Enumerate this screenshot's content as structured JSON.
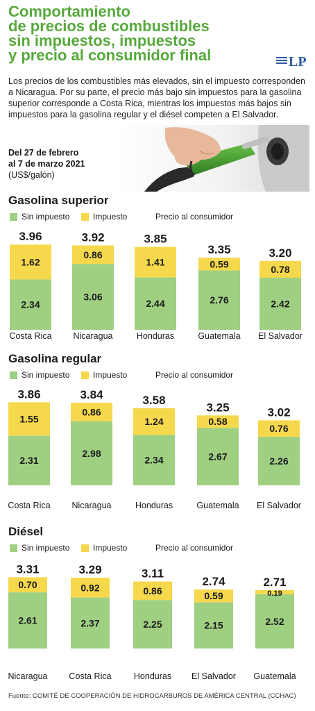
{
  "header": {
    "title_lines": [
      "Comportamiento",
      "de precios de combustibles",
      "sin impuestos, impuestos",
      "y precio al consumidor final"
    ],
    "logo_text": "LP"
  },
  "intro_text": "Los precios de los combustibles  más elevados, sin el impuesto corresponden a Nicaragua. Por su parte, el precio más bajo sin  impuestos para la gasolina superior corresponde a Costa Rica, mientras los impuestos más bajos sin impuestos para la gasolina regular y el diésel competen a El Salvador.",
  "period": {
    "line1": "Del 27 de febrero",
    "line2": "al 7 de marzo 2021",
    "unit": "(US$/galón)"
  },
  "footer": "Fuente: COMITÉ DE COOPERACIÓN DE HIDROCARBUROS DE AMÉRICA CENTRAL (CCHAC)",
  "colors": {
    "title": "#56a93c",
    "sin_impuesto": "#9fd082",
    "impuesto": "#f6d84c",
    "logo": "#2f5ca8"
  },
  "legend": {
    "sin_impuesto": "Sin impuesto",
    "impuesto": "Impuesto",
    "total": "Precio al consumidor"
  },
  "chart_data": [
    {
      "type": "bar",
      "stacked": true,
      "title": "Gasolina superior",
      "categories": [
        "Costa Rica",
        "Nicaragua",
        "Honduras",
        "Guatemala",
        "El Salvador"
      ],
      "series": [
        {
          "name": "Sin impuesto",
          "values": [
            2.34,
            3.06,
            2.44,
            2.76,
            2.42
          ]
        },
        {
          "name": "Impuesto",
          "values": [
            1.62,
            0.86,
            1.41,
            0.59,
            0.78
          ]
        }
      ],
      "totals": [
        3.96,
        3.92,
        3.85,
        3.35,
        3.2
      ],
      "total_labels": [
        "3.96",
        "3.92",
        "3.85",
        "3.35",
        "3.20"
      ],
      "sin_labels": [
        "2.34",
        "3.06",
        "2.44",
        "2.76",
        "2.42"
      ],
      "imp_labels": [
        "1.62",
        "0.86",
        "1.41",
        "0.59",
        "0.78"
      ],
      "legend_position": "top-left"
    },
    {
      "type": "bar",
      "stacked": true,
      "title": "Gasolina regular",
      "categories": [
        "Costa Rica",
        "Nicaragua",
        "Honduras",
        "Guatemala",
        "El Salvador"
      ],
      "series": [
        {
          "name": "Sin impuesto",
          "values": [
            2.31,
            2.98,
            2.34,
            2.67,
            2.26
          ]
        },
        {
          "name": "Impuesto",
          "values": [
            1.55,
            0.86,
            1.24,
            0.58,
            0.76
          ]
        }
      ],
      "totals": [
        3.86,
        3.84,
        3.58,
        3.25,
        3.02
      ],
      "total_labels": [
        "3.86",
        "3.84",
        "3.58",
        "3.25",
        "3.02"
      ],
      "sin_labels": [
        "2.31",
        "2.98",
        "2.34",
        "2.67",
        "2.26"
      ],
      "imp_labels": [
        "1.55",
        "0.86",
        "1.24",
        "0.58",
        "0.76"
      ],
      "legend_position": "top-left"
    },
    {
      "type": "bar",
      "stacked": true,
      "title": "Diésel",
      "categories": [
        "Nicaragua",
        "Costa Rica",
        "Honduras",
        "El Salvador",
        "Guatemala"
      ],
      "series": [
        {
          "name": "Sin impuesto",
          "values": [
            2.61,
            2.37,
            2.25,
            2.15,
            2.52
          ]
        },
        {
          "name": "Impuesto",
          "values": [
            0.7,
            0.92,
            0.86,
            0.59,
            0.19
          ]
        }
      ],
      "totals": [
        3.31,
        3.29,
        3.11,
        2.74,
        2.71
      ],
      "total_labels": [
        "3.31",
        "3.29",
        "3.11",
        "2.74",
        "2.71"
      ],
      "sin_labels": [
        "2.61",
        "2.37",
        "2.25",
        "2.15",
        "2.52"
      ],
      "imp_labels": [
        "0.70",
        "0.92",
        "0.86",
        "0.59",
        "0.19"
      ],
      "legend_position": "top-left"
    }
  ]
}
